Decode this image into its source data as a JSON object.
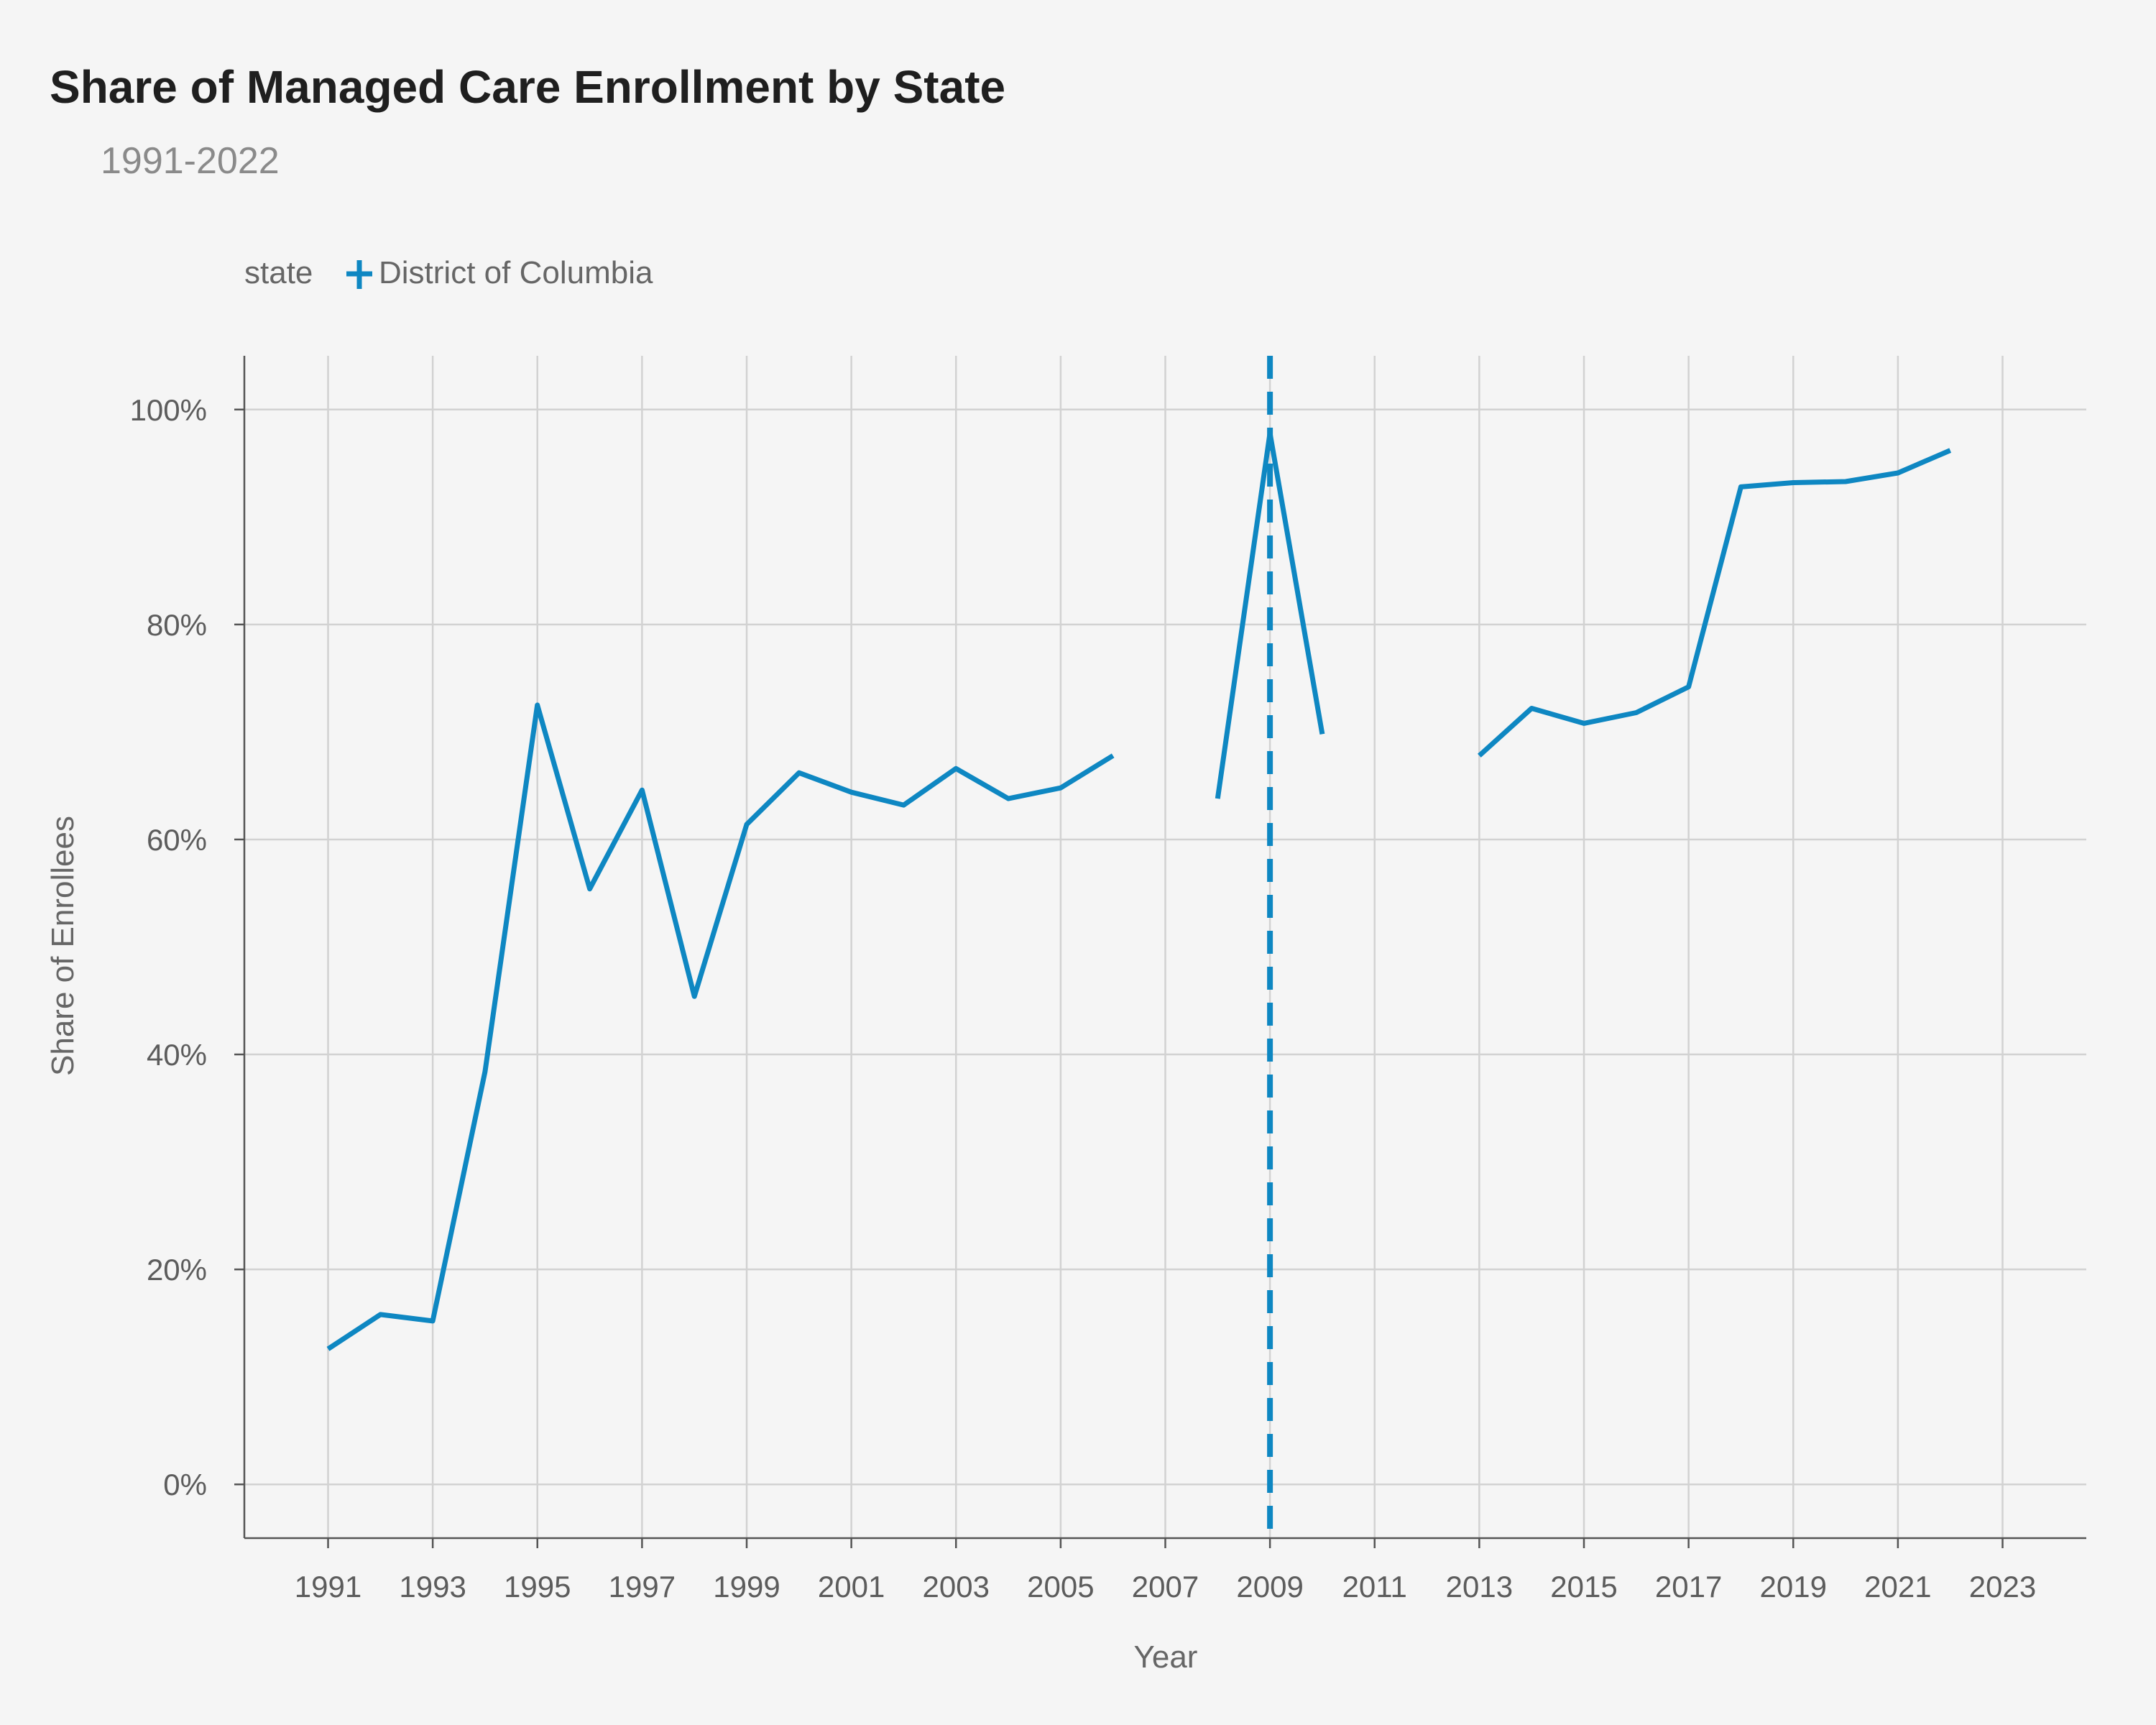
{
  "title": "Share of Managed Care Enrollment by State",
  "subtitle": "1991-2022",
  "colors": {
    "series": "#0e87c2",
    "grid": "#d2d2d2",
    "axis": "#555555"
  },
  "chart_data": {
    "type": "line",
    "title": "Share of Managed Care Enrollment by State",
    "subtitle": "1991-2022",
    "xlabel": "Year",
    "ylabel": "Share of Enrollees",
    "xlim": [
      1989.4,
      2024.6
    ],
    "ylim": [
      -5,
      105
    ],
    "x_ticks": [
      1991,
      1993,
      1995,
      1997,
      1999,
      2001,
      2003,
      2005,
      2007,
      2009,
      2011,
      2013,
      2015,
      2017,
      2019,
      2021,
      2023
    ],
    "x_tick_labels": [
      "1991",
      "1993",
      "1995",
      "1997",
      "1999",
      "2001",
      "2003",
      "2005",
      "2007",
      "2009",
      "2011",
      "2013",
      "2015",
      "2017",
      "2019",
      "2021",
      "2023"
    ],
    "y_ticks": [
      0,
      20,
      40,
      60,
      80,
      100
    ],
    "y_tick_labels": [
      "0%",
      "20%",
      "40%",
      "60%",
      "80%",
      "100%"
    ],
    "grid": true,
    "legend": {
      "title": "state",
      "placement": "top-left"
    },
    "series": [
      {
        "name": "District of Columbia",
        "color": "#0e87c2",
        "x": [
          1991,
          1992,
          1993,
          1994,
          1995,
          1996,
          1997,
          1998,
          1999,
          2000,
          2001,
          2002,
          2003,
          2004,
          2005,
          2006,
          2007,
          2008,
          2009,
          2010,
          2011,
          2012,
          2013,
          2014,
          2015,
          2016,
          2017,
          2018,
          2019,
          2020,
          2021,
          2022
        ],
        "y": [
          12.6,
          15.8,
          15.2,
          38.4,
          72.5,
          55.4,
          64.6,
          45.4,
          61.4,
          66.2,
          64.4,
          63.2,
          66.6,
          63.8,
          64.8,
          67.8,
          null,
          63.8,
          97.8,
          69.8,
          null,
          null,
          67.8,
          72.2,
          70.8,
          71.8,
          74.2,
          92.8,
          93.2,
          93.3,
          94.1,
          96.2
        ]
      }
    ],
    "reference_lines": [
      {
        "axis": "x",
        "value": 2009,
        "style": "dashed",
        "color": "#0e87c2"
      }
    ]
  }
}
